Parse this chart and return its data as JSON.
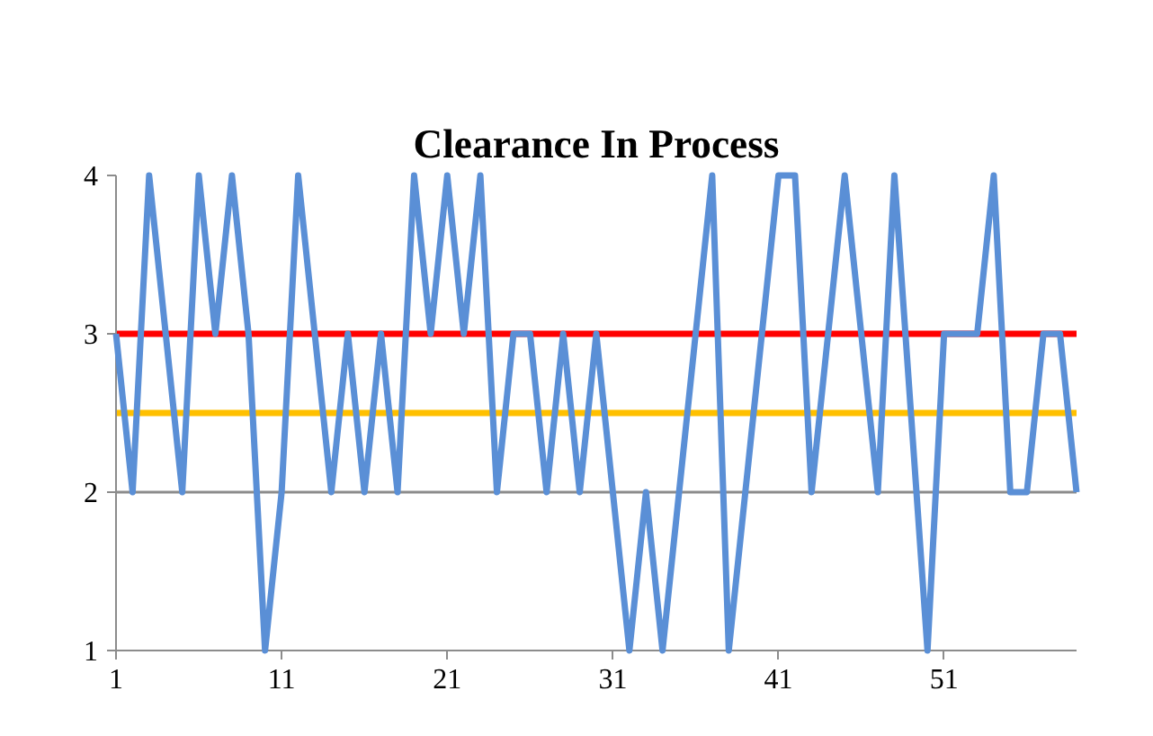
{
  "chart_data": {
    "type": "line",
    "title": "Clearance In Process",
    "x": [
      1,
      2,
      3,
      4,
      5,
      6,
      7,
      8,
      9,
      10,
      11,
      12,
      13,
      14,
      15,
      16,
      17,
      18,
      19,
      20,
      21,
      22,
      23,
      24,
      25,
      26,
      27,
      28,
      29,
      30,
      31,
      32,
      33,
      34,
      35,
      36,
      37,
      38,
      39,
      40,
      41,
      42,
      43,
      44,
      45,
      46,
      47,
      48,
      49,
      50,
      51,
      52,
      53,
      54,
      55,
      56,
      57,
      58,
      59
    ],
    "series": [
      {
        "color": "#5a8fd6",
        "values": [
          3,
          2,
          4,
          3,
          2,
          4,
          3,
          4,
          3,
          1,
          2,
          4,
          3,
          2,
          3,
          2,
          3,
          2,
          4,
          3,
          4,
          3,
          4,
          2,
          3,
          3,
          2,
          3,
          2,
          3,
          2,
          1,
          2,
          1,
          2,
          3,
          4,
          1,
          2,
          3,
          4,
          4,
          2,
          3,
          4,
          3,
          2,
          4,
          2.5,
          1,
          3,
          3,
          3,
          4,
          2,
          2,
          3,
          3,
          2
        ]
      }
    ],
    "xlim": [
      1,
      59
    ],
    "xticks": [
      1,
      11,
      21,
      31,
      41,
      51
    ],
    "ylim": [
      1,
      4
    ],
    "yticks": [
      1,
      2,
      3,
      4
    ],
    "grid": "y",
    "ref_lines": [
      {
        "axis": "y",
        "value": 3,
        "color": "#ff0000"
      },
      {
        "axis": "y",
        "value": 2.5,
        "color": "#ffc000"
      }
    ]
  }
}
